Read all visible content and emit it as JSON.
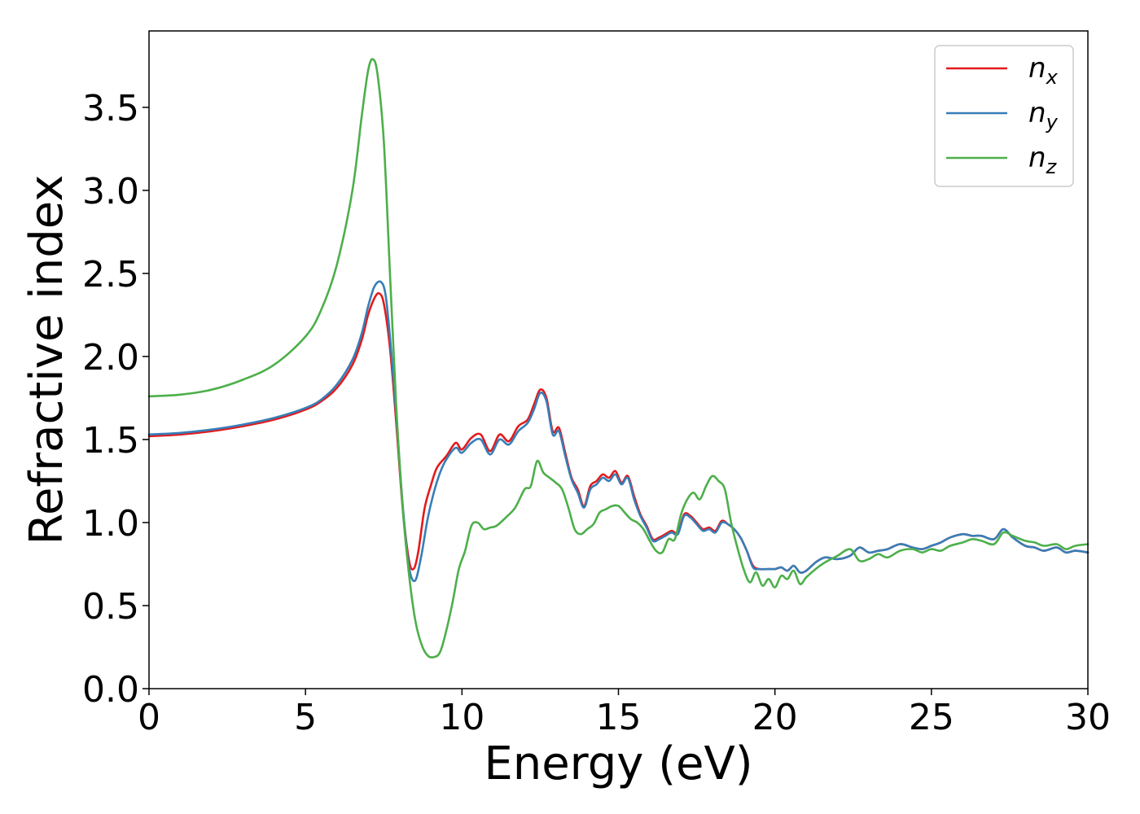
{
  "chart_data": {
    "type": "line",
    "xlabel": "Energy (eV)",
    "ylabel": "Refractive index",
    "xlim": [
      0,
      30
    ],
    "ylim": [
      0,
      3.96
    ],
    "xticks": [
      "0",
      "5",
      "10",
      "15",
      "20",
      "25",
      "30"
    ],
    "yticks": [
      "0.0",
      "0.5",
      "1.0",
      "1.5",
      "2.0",
      "2.5",
      "3.0",
      "3.5"
    ],
    "legend_position": "top-right",
    "grid": false,
    "series": [
      {
        "name": "n",
        "sub": "x",
        "color": "#e41a1c",
        "x": [
          0,
          1,
          2,
          3,
          4,
          5,
          5.5,
          6,
          6.5,
          6.8,
          7,
          7.2,
          7.35,
          7.5,
          7.7,
          7.9,
          8.1,
          8.3,
          8.45,
          8.6,
          8.8,
          9,
          9.2,
          9.5,
          9.8,
          10,
          10.3,
          10.6,
          10.9,
          11.2,
          11.5,
          11.8,
          12.1,
          12.3,
          12.5,
          12.7,
          12.9,
          13.1,
          13.3,
          13.5,
          13.7,
          13.9,
          14.1,
          14.3,
          14.5,
          14.7,
          14.9,
          15.1,
          15.3,
          15.5,
          15.7,
          15.9,
          16.1,
          16.3,
          16.5,
          16.7,
          16.9,
          17.1,
          17.3,
          17.5,
          17.7,
          17.9,
          18.1,
          18.3,
          18.5,
          18.7,
          18.9,
          19.1,
          19.3,
          19.5,
          19.8,
          20,
          20.2,
          20.4,
          20.6,
          20.8,
          21,
          21.3,
          21.6,
          22,
          22.4,
          22.7,
          23,
          23.3,
          23.6,
          24,
          24.4,
          24.7,
          25,
          25.3,
          25.6,
          26,
          26.3,
          26.6,
          27,
          27.3,
          27.6,
          28,
          28.3,
          28.6,
          29,
          29.3,
          29.6,
          30
        ],
        "y": [
          1.52,
          1.53,
          1.55,
          1.58,
          1.62,
          1.68,
          1.73,
          1.81,
          1.95,
          2.1,
          2.25,
          2.35,
          2.38,
          2.32,
          2.05,
          1.6,
          1.1,
          0.78,
          0.72,
          0.82,
          1.08,
          1.22,
          1.33,
          1.4,
          1.48,
          1.44,
          1.51,
          1.53,
          1.43,
          1.53,
          1.49,
          1.58,
          1.62,
          1.71,
          1.8,
          1.75,
          1.55,
          1.57,
          1.42,
          1.27,
          1.2,
          1.1,
          1.22,
          1.25,
          1.29,
          1.27,
          1.31,
          1.24,
          1.28,
          1.16,
          1.05,
          0.98,
          0.9,
          0.91,
          0.93,
          0.95,
          0.94,
          1.05,
          1.04,
          1.0,
          0.96,
          0.97,
          0.95,
          1.01,
          0.99,
          0.96,
          0.91,
          0.83,
          0.74,
          0.72,
          0.72,
          0.72,
          0.73,
          0.71,
          0.74,
          0.7,
          0.71,
          0.76,
          0.79,
          0.78,
          0.8,
          0.85,
          0.82,
          0.83,
          0.84,
          0.87,
          0.85,
          0.84,
          0.86,
          0.88,
          0.91,
          0.93,
          0.92,
          0.92,
          0.9,
          0.96,
          0.91,
          0.86,
          0.85,
          0.83,
          0.85,
          0.82,
          0.83,
          0.82
        ]
      },
      {
        "name": "n",
        "sub": "y",
        "color": "#377eb8",
        "x": [
          0,
          1,
          2,
          3,
          4,
          5,
          5.5,
          6,
          6.5,
          6.8,
          7,
          7.2,
          7.4,
          7.55,
          7.7,
          7.9,
          8.1,
          8.3,
          8.5,
          8.7,
          8.9,
          9.1,
          9.3,
          9.5,
          9.8,
          10,
          10.3,
          10.6,
          10.9,
          11.2,
          11.5,
          11.8,
          12.1,
          12.3,
          12.5,
          12.7,
          12.9,
          13.1,
          13.3,
          13.5,
          13.7,
          13.9,
          14.1,
          14.3,
          14.5,
          14.7,
          14.9,
          15.1,
          15.3,
          15.5,
          15.7,
          15.9,
          16.1,
          16.3,
          16.5,
          16.7,
          16.9,
          17.1,
          17.3,
          17.5,
          17.7,
          17.9,
          18.1,
          18.3,
          18.5,
          18.7,
          18.9,
          19.1,
          19.3,
          19.5,
          19.8,
          20,
          20.2,
          20.4,
          20.6,
          20.8,
          21,
          21.3,
          21.6,
          22,
          22.4,
          22.7,
          23,
          23.3,
          23.6,
          24,
          24.4,
          24.7,
          25,
          25.3,
          25.6,
          26,
          26.3,
          26.6,
          27,
          27.3,
          27.6,
          28,
          28.3,
          28.6,
          29,
          29.3,
          29.6,
          30
        ],
        "y": [
          1.53,
          1.54,
          1.56,
          1.59,
          1.63,
          1.69,
          1.74,
          1.83,
          1.98,
          2.14,
          2.3,
          2.42,
          2.45,
          2.38,
          2.12,
          1.65,
          1.12,
          0.74,
          0.65,
          0.8,
          1.02,
          1.18,
          1.3,
          1.38,
          1.45,
          1.42,
          1.48,
          1.5,
          1.41,
          1.5,
          1.47,
          1.55,
          1.6,
          1.68,
          1.78,
          1.73,
          1.53,
          1.55,
          1.4,
          1.26,
          1.18,
          1.09,
          1.2,
          1.23,
          1.27,
          1.25,
          1.29,
          1.23,
          1.27,
          1.14,
          1.04,
          0.97,
          0.89,
          0.9,
          0.92,
          0.94,
          0.93,
          1.04,
          1.03,
          0.99,
          0.95,
          0.96,
          0.94,
          1.0,
          0.99,
          0.96,
          0.91,
          0.83,
          0.73,
          0.72,
          0.72,
          0.72,
          0.73,
          0.71,
          0.74,
          0.7,
          0.71,
          0.76,
          0.79,
          0.78,
          0.8,
          0.85,
          0.82,
          0.83,
          0.84,
          0.87,
          0.85,
          0.84,
          0.86,
          0.88,
          0.91,
          0.93,
          0.92,
          0.92,
          0.9,
          0.96,
          0.91,
          0.86,
          0.85,
          0.83,
          0.85,
          0.82,
          0.83,
          0.82
        ]
      },
      {
        "name": "n",
        "sub": "z",
        "color": "#4daf4a",
        "x": [
          0,
          1,
          2,
          3,
          4,
          5,
          5.5,
          6,
          6.5,
          6.8,
          7,
          7.15,
          7.3,
          7.5,
          7.7,
          7.9,
          8.1,
          8.3,
          8.5,
          8.7,
          8.9,
          9.1,
          9.3,
          9.5,
          9.7,
          9.9,
          10.1,
          10.3,
          10.5,
          10.7,
          10.9,
          11.1,
          11.4,
          11.7,
          12,
          12.2,
          12.4,
          12.6,
          12.8,
          13,
          13.2,
          13.4,
          13.6,
          13.8,
          14,
          14.2,
          14.4,
          14.6,
          14.8,
          15,
          15.2,
          15.4,
          15.6,
          15.8,
          16,
          16.2,
          16.4,
          16.6,
          16.8,
          17,
          17.2,
          17.4,
          17.6,
          17.8,
          18,
          18.2,
          18.4,
          18.6,
          18.8,
          19,
          19.2,
          19.4,
          19.6,
          19.8,
          20,
          20.2,
          20.4,
          20.6,
          20.8,
          21,
          21.3,
          21.6,
          22,
          22.4,
          22.7,
          23,
          23.3,
          23.6,
          24,
          24.4,
          24.7,
          25,
          25.3,
          25.6,
          26,
          26.3,
          26.6,
          27,
          27.3,
          27.6,
          28,
          28.3,
          28.6,
          29,
          29.3,
          29.6,
          30
        ],
        "y": [
          1.76,
          1.77,
          1.8,
          1.86,
          1.95,
          2.12,
          2.28,
          2.55,
          3.0,
          3.45,
          3.72,
          3.79,
          3.7,
          3.3,
          2.5,
          1.7,
          1.1,
          0.7,
          0.42,
          0.27,
          0.2,
          0.19,
          0.22,
          0.35,
          0.52,
          0.72,
          0.83,
          0.98,
          1.0,
          0.96,
          0.97,
          0.98,
          1.03,
          1.09,
          1.2,
          1.22,
          1.37,
          1.3,
          1.27,
          1.24,
          1.2,
          1.09,
          0.96,
          0.93,
          0.96,
          0.99,
          1.06,
          1.08,
          1.1,
          1.1,
          1.06,
          1.02,
          1.0,
          0.96,
          0.89,
          0.83,
          0.82,
          0.9,
          0.9,
          1.05,
          1.14,
          1.18,
          1.14,
          1.22,
          1.28,
          1.25,
          1.2,
          1.0,
          0.85,
          0.72,
          0.64,
          0.7,
          0.62,
          0.66,
          0.61,
          0.68,
          0.66,
          0.71,
          0.63,
          0.67,
          0.72,
          0.76,
          0.8,
          0.84,
          0.77,
          0.78,
          0.81,
          0.79,
          0.83,
          0.84,
          0.82,
          0.84,
          0.83,
          0.86,
          0.88,
          0.9,
          0.89,
          0.87,
          0.94,
          0.92,
          0.89,
          0.88,
          0.86,
          0.87,
          0.84,
          0.86,
          0.87
        ]
      }
    ]
  }
}
